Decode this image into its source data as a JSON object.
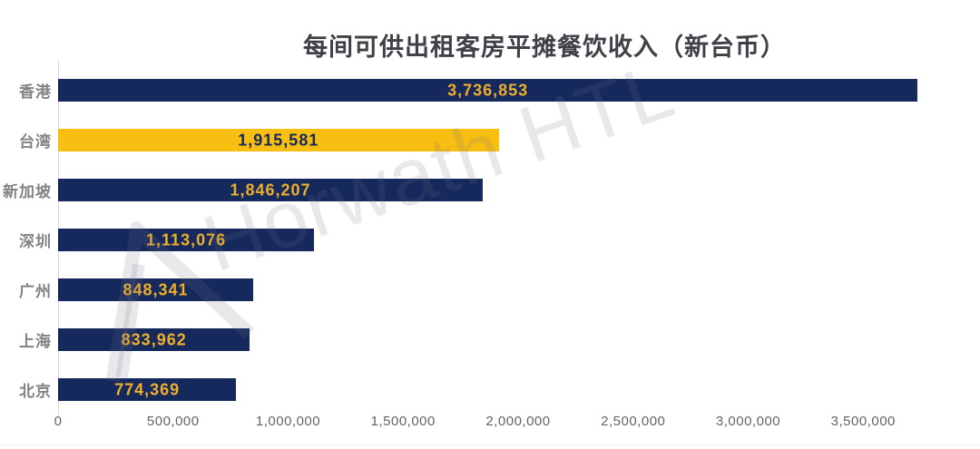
{
  "title": "每间可供出租客房平摊餐饮收入（新台币）",
  "watermark": {
    "text": "Horwath HTL",
    "logo": "horwath-triangle-logo"
  },
  "colors": {
    "bar_navy": "#16295d",
    "bar_yellow": "#f9be12",
    "value_gold": "#efae2c",
    "value_navy": "#16295d",
    "title_text": "#3f4048",
    "category_text": "#828282",
    "tick_text": "#646466",
    "axis_line": "#d9d9d9"
  },
  "chart_data": {
    "type": "bar",
    "orientation": "horizontal",
    "title": "每间可供出租客房平摊餐饮收入（新台币）",
    "categories": [
      "香港",
      "台湾",
      "新加坡",
      "深圳",
      "广州",
      "上海",
      "北京"
    ],
    "values": [
      3736853,
      1915581,
      1846207,
      1113076,
      848341,
      833962,
      774369
    ],
    "value_labels": [
      "3,736,853",
      "1,915,581",
      "1,846,207",
      "1,113,076",
      "848,341",
      "833,962",
      "774,369"
    ],
    "bar_colors": [
      "#16295d",
      "#f9be12",
      "#16295d",
      "#16295d",
      "#16295d",
      "#16295d",
      "#16295d"
    ],
    "value_label_colors": [
      "#efae2c",
      "#16295d",
      "#efae2c",
      "#efae2c",
      "#efae2c",
      "#efae2c",
      "#efae2c"
    ],
    "xlabel": "",
    "ylabel": "",
    "xlim": [
      0,
      3850000
    ],
    "x_ticks": [
      0,
      500000,
      1000000,
      1500000,
      2000000,
      2500000,
      3000000,
      3500000
    ],
    "x_tick_labels": [
      "0",
      "500,000",
      "1,000,000",
      "1,500,000",
      "2,000,000",
      "2,500,000",
      "3,000,000",
      "3,500,000"
    ],
    "grid": false,
    "legend": null,
    "value_label_position": "center-of-bar"
  }
}
